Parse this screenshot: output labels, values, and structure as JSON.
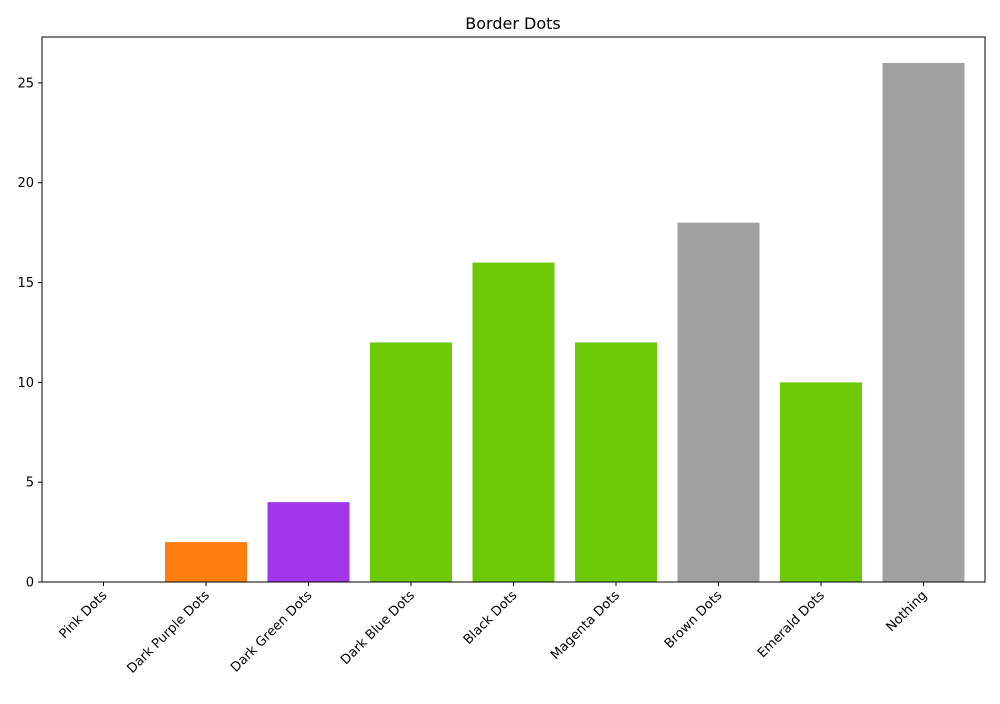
{
  "chart_data": {
    "type": "bar",
    "title": "Border Dots",
    "xlabel": "",
    "ylabel": "",
    "categories": [
      "Pink Dots",
      "Dark Purple Dots",
      "Dark Green Dots",
      "Dark Blue Dots",
      "Black Dots",
      "Magenta Dots",
      "Brown Dots",
      "Emerald Dots",
      "Nothing"
    ],
    "values": [
      0,
      2,
      4,
      12,
      16,
      12,
      18,
      10,
      26
    ],
    "colors": [
      "#ff7f0e",
      "#ff7f0e",
      "#a336eb",
      "#6cc904",
      "#6cc904",
      "#6cc904",
      "#a0a0a0",
      "#6cc904",
      "#a0a0a0"
    ],
    "ylim": [
      0,
      27.3
    ],
    "yticks": [
      0,
      5,
      10,
      15,
      20,
      25
    ],
    "grid": false,
    "legend": "none"
  }
}
